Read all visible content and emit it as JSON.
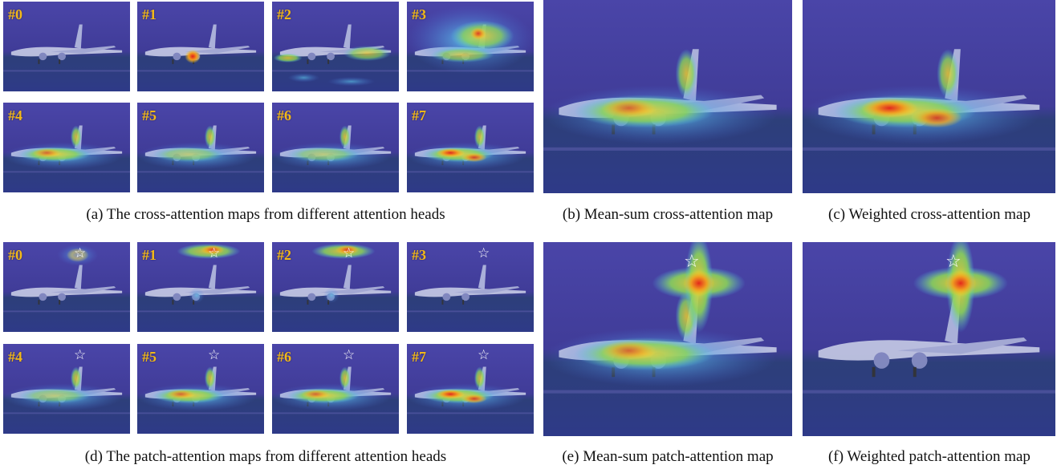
{
  "cross_heads": [
    {
      "label": "#0",
      "heat": "none",
      "accent": "#5cc8ff"
    },
    {
      "label": "#1",
      "heat": "engine",
      "accent": "#e84a1a"
    },
    {
      "label": "#2",
      "heat": "ground",
      "accent": "#8bd35a"
    },
    {
      "label": "#3",
      "heat": "broad",
      "accent": "#e8c21a"
    },
    {
      "label": "#4",
      "heat": "plane",
      "accent": "#e8c21a"
    },
    {
      "label": "#5",
      "heat": "plane-low",
      "accent": "#8bd35a"
    },
    {
      "label": "#6",
      "heat": "plane-low",
      "accent": "#8bd35a"
    },
    {
      "label": "#7",
      "heat": "plane-strong",
      "accent": "#e8501a"
    }
  ],
  "patch_heads": [
    {
      "label": "#0",
      "star": "☆",
      "heat": "star-hot"
    },
    {
      "label": "#1",
      "star": "☆",
      "heat": "star-warm"
    },
    {
      "label": "#2",
      "star": "☆",
      "heat": "star-warm"
    },
    {
      "label": "#3",
      "star": "☆",
      "heat": "none"
    },
    {
      "label": "#4",
      "star": "☆",
      "heat": "plane-low"
    },
    {
      "label": "#5",
      "star": "☆",
      "heat": "plane"
    },
    {
      "label": "#6",
      "star": "☆",
      "heat": "plane"
    },
    {
      "label": "#7",
      "star": "☆",
      "heat": "plane-strong"
    }
  ],
  "big_panels": {
    "b": {
      "star": "",
      "heat": "plane"
    },
    "c": {
      "star": "",
      "heat": "plane-strong"
    },
    "e": {
      "star": "☆",
      "heat": "star-plane"
    },
    "f": {
      "star": "☆",
      "heat": "star-only"
    }
  },
  "captions": {
    "a": "(a) The cross-attention maps from different attention heads",
    "b": "(b) Mean-sum cross-attention map",
    "c": "(c) Weighted cross-attention map",
    "d": "(d) The patch-attention maps from different attention heads",
    "e": "(e) Mean-sum patch-attention map",
    "f": "(f) Weighted patch-attention map"
  },
  "colors": {
    "background": "#3b3a8c",
    "label": "#f2b818",
    "hot": "#e53a1a",
    "warm": "#f5d02a"
  }
}
